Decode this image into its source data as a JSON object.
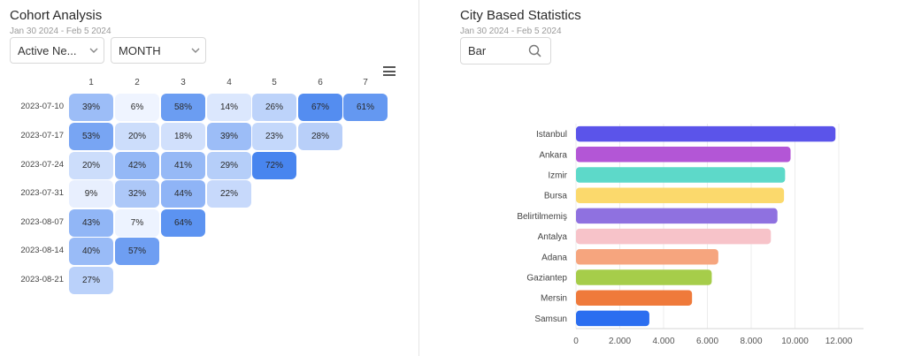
{
  "cohort": {
    "title": "Cohort Analysis",
    "date_range": "Jan 30 2024 - Feb 5 2024",
    "metric_select": "Active Ne...",
    "period_select": "MONTH",
    "columns": [
      "1",
      "2",
      "3",
      "4",
      "5",
      "6",
      "7"
    ],
    "rows": [
      {
        "label": "2023-07-10",
        "cells": [
          "39%",
          "6%",
          "58%",
          "14%",
          "26%",
          "67%",
          "61%"
        ]
      },
      {
        "label": "2023-07-17",
        "cells": [
          "53%",
          "20%",
          "18%",
          "39%",
          "23%",
          "28%"
        ]
      },
      {
        "label": "2023-07-24",
        "cells": [
          "20%",
          "42%",
          "41%",
          "29%",
          "72%"
        ]
      },
      {
        "label": "2023-07-31",
        "cells": [
          "9%",
          "32%",
          "44%",
          "22%"
        ]
      },
      {
        "label": "2023-08-07",
        "cells": [
          "43%",
          "7%",
          "64%"
        ]
      },
      {
        "label": "2023-08-14",
        "cells": [
          "40%",
          "57%"
        ]
      },
      {
        "label": "2023-08-21",
        "cells": [
          "27%"
        ]
      }
    ]
  },
  "city": {
    "title": "City Based Statistics",
    "date_range": "Jan 30 2024 - Feb 5 2024",
    "search_value": "Bar"
  },
  "chart_data": {
    "type": "bar",
    "orientation": "horizontal",
    "categories": [
      "Istanbul",
      "Ankara",
      "Izmir",
      "Bursa",
      "Belirtilmemiş",
      "Antalya",
      "Adana",
      "Gaziantep",
      "Mersin",
      "Samsun"
    ],
    "values": [
      11850,
      9800,
      9550,
      9500,
      9200,
      8900,
      6500,
      6200,
      5300,
      3350
    ],
    "colors": [
      "#5b54ea",
      "#b356d6",
      "#5dd9c9",
      "#fbd96c",
      "#8f71e0",
      "#f7c3c9",
      "#f6a57e",
      "#a6cd4a",
      "#ef7a3b",
      "#2b6ef0"
    ],
    "xlim": [
      0,
      12000
    ],
    "xticks": [
      "0",
      "2.000",
      "4.000",
      "6.000",
      "8.000",
      "10.000",
      "12.000"
    ],
    "grid": true,
    "title": "",
    "xlabel": "",
    "ylabel": ""
  }
}
